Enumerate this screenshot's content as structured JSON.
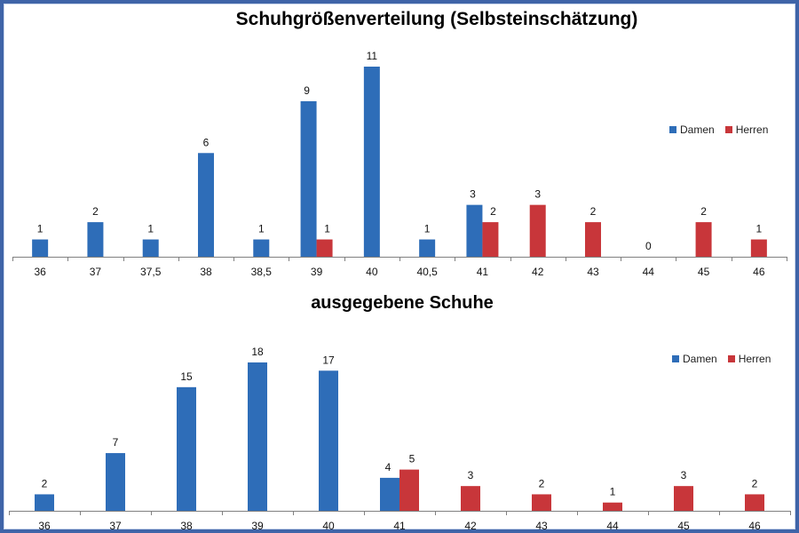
{
  "colors": {
    "damen": "#2e6db8",
    "herren": "#c8363a",
    "axis": "#808080"
  },
  "chart_data": [
    {
      "type": "bar",
      "title": "Schuhgrößenverteilung (Selbsteinschätzung)",
      "categories": [
        "36",
        "37",
        "37,5",
        "38",
        "38,5",
        "39",
        "40",
        "40,5",
        "41",
        "42",
        "43",
        "44",
        "45",
        "46"
      ],
      "series": [
        {
          "name": "Damen",
          "values": [
            1,
            2,
            1,
            6,
            1,
            9,
            11,
            1,
            3,
            null,
            null,
            null,
            null,
            null
          ]
        },
        {
          "name": "Herren",
          "values": [
            null,
            null,
            null,
            null,
            null,
            1,
            null,
            null,
            2,
            3,
            2,
            0,
            2,
            1
          ]
        }
      ],
      "legend": {
        "position": "right",
        "labels": [
          "Damen",
          "Herren"
        ]
      },
      "ylim": [
        0,
        11
      ],
      "grid": false
    },
    {
      "type": "bar",
      "title": "ausgegebene Schuhe",
      "categories": [
        "36",
        "37",
        "38",
        "39",
        "40",
        "41",
        "42",
        "43",
        "44",
        "45",
        "46"
      ],
      "series": [
        {
          "name": "Damen",
          "values": [
            2,
            7,
            15,
            18,
            17,
            4,
            null,
            null,
            null,
            null,
            null
          ]
        },
        {
          "name": "Herren",
          "values": [
            null,
            null,
            null,
            null,
            null,
            5,
            3,
            2,
            1,
            3,
            2
          ]
        }
      ],
      "legend": {
        "position": "right",
        "labels": [
          "Damen",
          "Herren"
        ]
      },
      "ylim": [
        0,
        18
      ],
      "grid": false
    }
  ]
}
